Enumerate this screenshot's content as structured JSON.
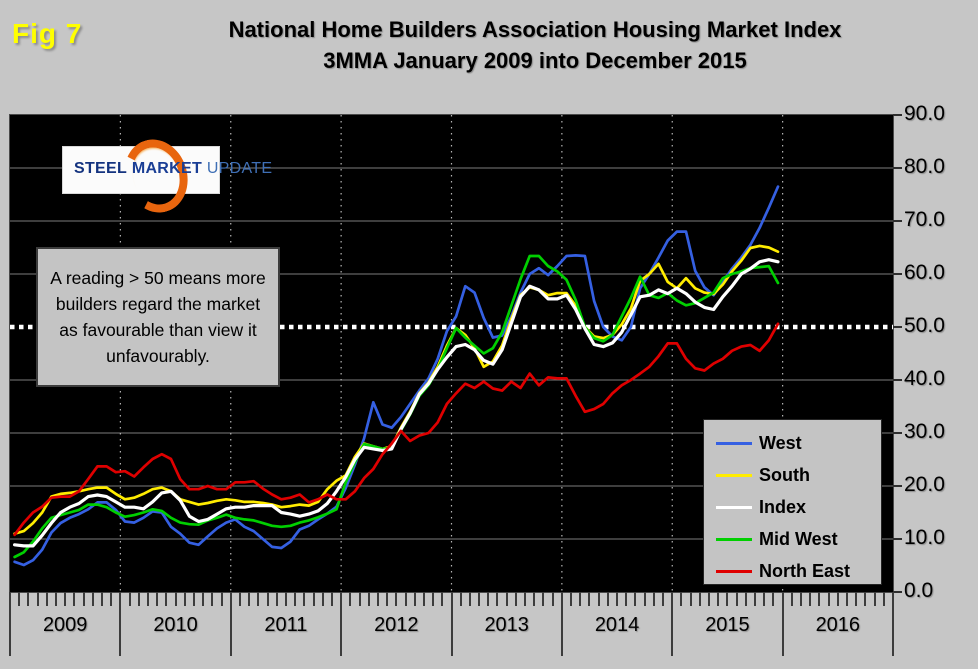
{
  "fig_label": "Fig 7",
  "title": {
    "line1": "National Home Builders Association Housing Market Index",
    "line2": "3MMA January 2009 into December 2015"
  },
  "logo": {
    "word1": "STEEL",
    "word2": "MARKET",
    "word3": "UPDATE"
  },
  "annotation": "A reading > 50 means more builders regard the market as favourable than view it unfavourably.",
  "legend": {
    "position": "bottom-right",
    "items": [
      {
        "label": "West",
        "color": "#3560e2"
      },
      {
        "label": "South",
        "color": "#ffec00"
      },
      {
        "label": "Index",
        "color": "#ffffff"
      },
      {
        "label": "Mid West",
        "color": "#00cf00"
      },
      {
        "label": "North East",
        "color": "#df0000"
      }
    ]
  },
  "chart_data": {
    "type": "line",
    "title": "National Home Builders Association Housing Market Index 3MMA January 2009 into December 2015",
    "plot_background": "#000000",
    "x_axis": {
      "unit": "month",
      "start": "2009-01",
      "end": "2015-12",
      "points": 84,
      "tick_years": [
        2009,
        2010,
        2011,
        2012,
        2013,
        2014,
        2015,
        2016
      ],
      "range_years": [
        2009,
        2017
      ]
    },
    "y_axis": {
      "min": 0,
      "max": 90,
      "ticks": [
        0,
        10,
        20,
        30,
        40,
        50,
        60,
        70,
        80,
        90
      ],
      "tick_format": "0.0",
      "side": "right"
    },
    "grid": {
      "horizontal": "solid gray every 10",
      "vertical": "dotted gray at year boundaries",
      "reference_line": {
        "value": 50,
        "style": "thick white dotted"
      }
    },
    "series": [
      {
        "name": "West",
        "color": "#3560e2",
        "values": [
          5.7,
          5.1,
          6.0,
          8.0,
          11.2,
          13.0,
          14.0,
          14.7,
          15.6,
          16.9,
          16.9,
          15.5,
          13.3,
          13.1,
          14.0,
          15.2,
          15.0,
          12.3,
          11.0,
          9.3,
          8.9,
          10.5,
          12.0,
          13.1,
          13.7,
          12.3,
          11.5,
          10.0,
          8.5,
          8.3,
          9.5,
          11.8,
          12.5,
          13.7,
          14.8,
          16.1,
          19.6,
          24.0,
          29.0,
          35.8,
          31.6,
          31.0,
          33.0,
          35.5,
          38.0,
          40.3,
          44.0,
          49.2,
          52.0,
          57.7,
          56.5,
          51.7,
          48.0,
          48.4,
          52.0,
          56.5,
          60.0,
          61.1,
          59.8,
          61.5,
          63.4,
          63.5,
          63.4,
          54.9,
          50.0,
          48.2,
          47.5,
          50.0,
          57.3,
          60.0,
          63.1,
          66.3,
          68.0,
          68.0,
          60.6,
          57.5,
          56.0,
          58.5,
          61.0,
          63.1,
          65.5,
          68.7,
          72.5,
          76.5
        ]
      },
      {
        "name": "South",
        "color": "#ffec00",
        "values": [
          11.0,
          11.5,
          13.0,
          15.0,
          18.0,
          18.5,
          18.7,
          19.0,
          19.4,
          19.7,
          19.7,
          18.5,
          17.5,
          17.8,
          18.5,
          19.4,
          19.7,
          19.0,
          17.5,
          17.0,
          16.5,
          16.8,
          17.2,
          17.5,
          17.3,
          17.0,
          17.0,
          16.8,
          16.5,
          16.0,
          16.2,
          16.5,
          16.3,
          17.0,
          19.4,
          21.0,
          22.0,
          25.5,
          28.0,
          27.5,
          27.0,
          27.5,
          31.0,
          34.0,
          37.5,
          39.5,
          42.5,
          46.5,
          49.8,
          48.5,
          46.0,
          42.5,
          43.5,
          46.5,
          51.5,
          56.0,
          57.5,
          57.0,
          56.0,
          56.4,
          56.4,
          54.0,
          50.0,
          48.2,
          47.9,
          48.5,
          50.5,
          53.5,
          58.7,
          60.0,
          61.9,
          58.5,
          57.3,
          59.2,
          57.3,
          56.5,
          56.2,
          58.0,
          60.5,
          62.5,
          64.9,
          65.3,
          65.0,
          64.2
        ]
      },
      {
        "name": "Index",
        "color": "#ffffff",
        "values": [
          8.9,
          8.7,
          8.7,
          10.7,
          13.0,
          15.0,
          16.0,
          16.7,
          18.0,
          18.3,
          18.0,
          17.0,
          16.0,
          16.0,
          15.7,
          17.0,
          18.7,
          19.0,
          17.3,
          14.3,
          13.3,
          13.7,
          14.7,
          15.7,
          16.0,
          16.0,
          16.3,
          16.3,
          16.3,
          15.0,
          14.7,
          14.3,
          14.7,
          15.3,
          16.7,
          19.0,
          21.7,
          25.0,
          27.3,
          27.0,
          26.7,
          27.0,
          30.7,
          33.7,
          37.3,
          39.3,
          42.0,
          44.3,
          46.3,
          46.7,
          45.7,
          43.7,
          43.0,
          45.7,
          50.7,
          55.7,
          57.7,
          57.0,
          55.3,
          55.3,
          56.0,
          53.3,
          49.7,
          46.7,
          46.3,
          47.0,
          49.0,
          52.3,
          55.7,
          56.0,
          57.0,
          56.3,
          57.3,
          56.3,
          54.7,
          53.7,
          53.3,
          55.7,
          57.7,
          60.0,
          61.0,
          62.3,
          62.7,
          62.3
        ]
      },
      {
        "name": "Mid West",
        "color": "#00cf00",
        "values": [
          6.6,
          7.5,
          9.5,
          12.0,
          14.0,
          14.5,
          15.0,
          15.5,
          16.5,
          16.5,
          16.0,
          15.0,
          14.2,
          14.5,
          15.0,
          15.6,
          15.3,
          14.0,
          13.1,
          12.8,
          12.7,
          13.5,
          14.0,
          14.6,
          14.0,
          13.7,
          13.5,
          13.0,
          12.5,
          12.3,
          12.5,
          13.1,
          13.5,
          14.1,
          14.8,
          15.6,
          20.7,
          24.5,
          27.9,
          27.5,
          27.0,
          27.2,
          30.5,
          33.5,
          37.0,
          39.0,
          42.0,
          46.0,
          49.8,
          48.0,
          46.5,
          45.0,
          46.0,
          49.0,
          54.0,
          59.0,
          63.4,
          63.4,
          61.5,
          60.5,
          58.9,
          55.1,
          50.0,
          47.9,
          47.3,
          48.5,
          52.0,
          55.5,
          59.5,
          56.0,
          55.5,
          56.4,
          55.0,
          54.1,
          54.5,
          55.5,
          56.5,
          59.2,
          60.0,
          60.5,
          61.1,
          61.3,
          61.5,
          58.3
        ]
      },
      {
        "name": "North East",
        "color": "#df0000",
        "values": [
          10.8,
          13.1,
          15.0,
          16.1,
          17.8,
          18.0,
          18.0,
          19.0,
          21.3,
          23.7,
          23.7,
          22.6,
          22.8,
          21.8,
          23.5,
          25.1,
          26.0,
          25.1,
          21.3,
          19.4,
          19.4,
          20.0,
          19.4,
          19.4,
          20.7,
          20.7,
          20.9,
          19.5,
          18.4,
          17.5,
          17.8,
          18.4,
          16.9,
          17.5,
          18.4,
          17.5,
          17.5,
          19.0,
          21.5,
          23.2,
          26.0,
          28.0,
          30.4,
          28.5,
          29.5,
          30.0,
          32.0,
          35.5,
          37.5,
          39.3,
          38.5,
          39.7,
          38.4,
          38.0,
          39.7,
          38.5,
          41.2,
          39.0,
          40.5,
          40.3,
          40.3,
          37.0,
          34.0,
          34.5,
          35.5,
          37.5,
          39.0,
          40.0,
          41.2,
          42.5,
          44.5,
          46.9,
          46.9,
          44.0,
          42.2,
          41.8,
          43.1,
          44.0,
          45.5,
          46.3,
          46.6,
          45.5,
          47.5,
          50.6
        ]
      }
    ]
  }
}
